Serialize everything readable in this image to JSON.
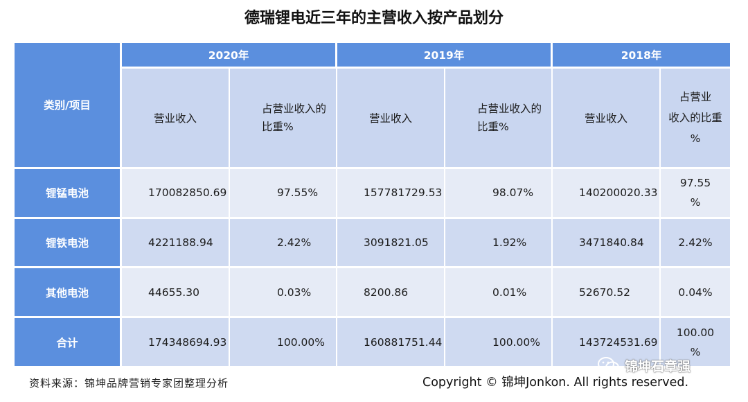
{
  "title": "德瑞锂电近三年的主营收入按产品划分",
  "table": {
    "corner": "类别/项目",
    "years": [
      "2020年",
      "2019年",
      "2018年"
    ],
    "sub_revenue": "营业收入",
    "sub_pct_line1": "占营业收入的",
    "sub_pct_line2": "比重%",
    "sub_pct3_line1": "占营业",
    "sub_pct3_line2": "收入的比重",
    "sub_pct3_line3": "%",
    "rows": [
      {
        "label": "锂锰电池",
        "rev2020": "170082850.69",
        "pct2020": "97.55%",
        "rev2019": "157781729.53",
        "pct2019": "98.07%",
        "rev2018": "140200020.33",
        "pct2018_a": "97.55",
        "pct2018_b": "%"
      },
      {
        "label": "锂铁电池",
        "rev2020": "4221188.94",
        "pct2020": "2.42%",
        "rev2019": "3091821.05",
        "pct2019": "1.92%",
        "rev2018": "3471840.84",
        "pct2018": "2.42%"
      },
      {
        "label": "其他电池",
        "rev2020": "44655.30",
        "pct2020": "0.03%",
        "rev2019": "8200.86",
        "pct2019": "0.01%",
        "rev2018": "52670.52",
        "pct2018": "0.04%"
      },
      {
        "label": "合计",
        "rev2020": "174348694.93",
        "pct2020": "100.00%",
        "rev2019": "160881751.44",
        "pct2019": "100.00%",
        "rev2018": "143724531.69",
        "pct2018_a": "100.00",
        "pct2018_b": "%"
      }
    ]
  },
  "footer": {
    "source": "资料来源：锦坤品牌营销专家团整理分析",
    "copyright": "Copyright © 锦坤Jonkon. All rights reserved."
  },
  "watermark": {
    "text": "锦坤石章强",
    "icon": "wechat-icon"
  }
}
